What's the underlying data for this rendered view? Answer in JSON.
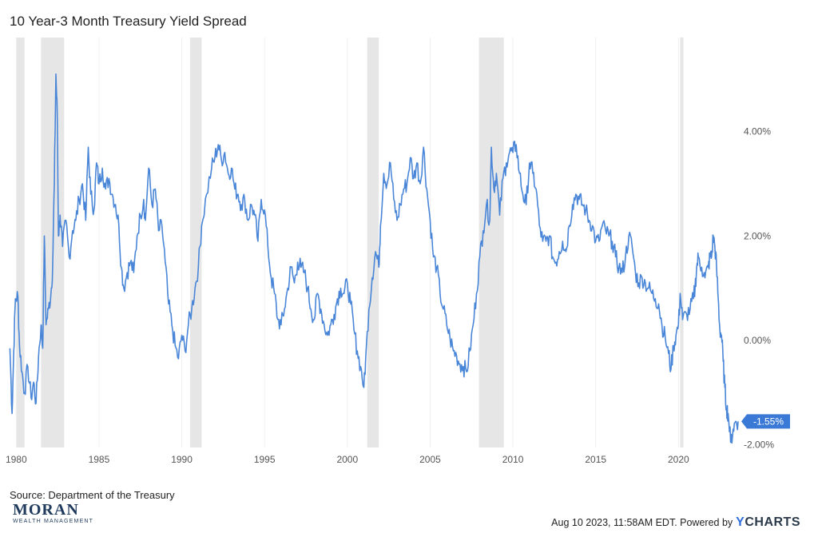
{
  "chart_data": {
    "type": "line",
    "title": "10 Year-3 Month Treasury Yield Spread",
    "xlabel": "",
    "ylabel": "",
    "x_range": [
      1979.6,
      2023.65
    ],
    "y_range": [
      -2.05,
      5.8
    ],
    "x_ticks": [
      {
        "value": 1980,
        "label": "1980"
      },
      {
        "value": 1985,
        "label": "1985"
      },
      {
        "value": 1990,
        "label": "1990"
      },
      {
        "value": 1995,
        "label": "1995"
      },
      {
        "value": 2000,
        "label": "2000"
      },
      {
        "value": 2005,
        "label": "2005"
      },
      {
        "value": 2010,
        "label": "2010"
      },
      {
        "value": 2015,
        "label": "2015"
      },
      {
        "value": 2020,
        "label": "2020"
      }
    ],
    "y_ticks": [
      {
        "value": 4,
        "label": "4.00%"
      },
      {
        "value": 2,
        "label": "2.00%"
      },
      {
        "value": 0,
        "label": "0.00%"
      },
      {
        "value": -2,
        "label": "-2.00%"
      }
    ],
    "recessions": [
      [
        1980.0,
        1980.5
      ],
      [
        1981.5,
        1982.9
      ],
      [
        1990.5,
        1991.2
      ],
      [
        2001.2,
        2001.9
      ],
      [
        2007.95,
        2009.45
      ],
      [
        2020.1,
        2020.3
      ]
    ],
    "series": [
      {
        "color": "#4a86d8",
        "points": [
          [
            1979.62,
            -0.15
          ],
          [
            1979.75,
            -1.4
          ],
          [
            1979.85,
            -0.2
          ],
          [
            1979.95,
            0.8
          ],
          [
            1980.1,
            0.85
          ],
          [
            1980.2,
            -0.1
          ],
          [
            1980.35,
            -0.6
          ],
          [
            1980.5,
            -1.0
          ],
          [
            1980.7,
            -0.5
          ],
          [
            1980.9,
            -1.1
          ],
          [
            1981.05,
            -0.8
          ],
          [
            1981.2,
            -1.2
          ],
          [
            1981.35,
            -0.3
          ],
          [
            1981.5,
            0.3
          ],
          [
            1981.6,
            -0.15
          ],
          [
            1981.7,
            2.0
          ],
          [
            1981.8,
            0.3
          ],
          [
            1981.95,
            0.6
          ],
          [
            1982.1,
            0.9
          ],
          [
            1982.2,
            1.4
          ],
          [
            1982.3,
            3.0
          ],
          [
            1982.4,
            5.1
          ],
          [
            1982.48,
            4.3
          ],
          [
            1982.55,
            2.0
          ],
          [
            1982.65,
            2.4
          ],
          [
            1982.8,
            1.8
          ],
          [
            1983.0,
            2.3
          ],
          [
            1983.2,
            1.6
          ],
          [
            1983.4,
            2.1
          ],
          [
            1983.6,
            2.3
          ],
          [
            1983.8,
            2.7
          ],
          [
            1984.0,
            3.0
          ],
          [
            1984.2,
            2.3
          ],
          [
            1984.35,
            3.7
          ],
          [
            1984.5,
            2.8
          ],
          [
            1984.7,
            2.5
          ],
          [
            1984.85,
            3.4
          ],
          [
            1985.0,
            3.0
          ],
          [
            1985.2,
            3.3
          ],
          [
            1985.4,
            2.9
          ],
          [
            1985.6,
            3.1
          ],
          [
            1985.8,
            2.8
          ],
          [
            1986.0,
            2.6
          ],
          [
            1986.2,
            2.2
          ],
          [
            1986.35,
            1.4
          ],
          [
            1986.5,
            1.0
          ],
          [
            1986.7,
            1.3
          ],
          [
            1986.9,
            1.5
          ],
          [
            1987.1,
            1.3
          ],
          [
            1987.3,
            2.0
          ],
          [
            1987.5,
            2.4
          ],
          [
            1987.7,
            2.7
          ],
          [
            1987.8,
            2.3
          ],
          [
            1988.0,
            3.3
          ],
          [
            1988.2,
            2.6
          ],
          [
            1988.4,
            2.9
          ],
          [
            1988.6,
            2.1
          ],
          [
            1988.8,
            2.2
          ],
          [
            1989.0,
            1.5
          ],
          [
            1989.2,
            0.7
          ],
          [
            1989.4,
            0.3
          ],
          [
            1989.6,
            -0.1
          ],
          [
            1989.8,
            -0.35
          ],
          [
            1990.0,
            0.1
          ],
          [
            1990.2,
            -0.2
          ],
          [
            1990.4,
            0.3
          ],
          [
            1990.6,
            0.6
          ],
          [
            1990.8,
            1.0
          ],
          [
            1991.0,
            1.4
          ],
          [
            1991.2,
            2.2
          ],
          [
            1991.5,
            2.8
          ],
          [
            1991.8,
            3.3
          ],
          [
            1992.0,
            3.5
          ],
          [
            1992.2,
            3.75
          ],
          [
            1992.4,
            3.45
          ],
          [
            1992.6,
            3.6
          ],
          [
            1992.8,
            3.2
          ],
          [
            1993.0,
            3.3
          ],
          [
            1993.2,
            2.9
          ],
          [
            1993.4,
            2.8
          ],
          [
            1993.6,
            2.6
          ],
          [
            1993.8,
            2.7
          ],
          [
            1994.0,
            2.3
          ],
          [
            1994.2,
            2.6
          ],
          [
            1994.4,
            2.4
          ],
          [
            1994.6,
            1.9
          ],
          [
            1994.8,
            2.7
          ],
          [
            1995.0,
            2.5
          ],
          [
            1995.2,
            1.8
          ],
          [
            1995.4,
            1.2
          ],
          [
            1995.6,
            0.9
          ],
          [
            1995.8,
            0.4
          ],
          [
            1996.0,
            0.3
          ],
          [
            1996.2,
            0.6
          ],
          [
            1996.4,
            1.0
          ],
          [
            1996.6,
            1.4
          ],
          [
            1996.8,
            1.1
          ],
          [
            1997.0,
            1.5
          ],
          [
            1997.2,
            1.4
          ],
          [
            1997.4,
            1.3
          ],
          [
            1997.6,
            1.0
          ],
          [
            1997.8,
            0.6
          ],
          [
            1998.0,
            0.4
          ],
          [
            1998.2,
            0.9
          ],
          [
            1998.4,
            0.6
          ],
          [
            1998.6,
            0.3
          ],
          [
            1998.8,
            0.1
          ],
          [
            1999.0,
            0.3
          ],
          [
            1999.2,
            0.5
          ],
          [
            1999.4,
            0.8
          ],
          [
            1999.6,
            1.0
          ],
          [
            1999.8,
            0.9
          ],
          [
            2000.0,
            1.1
          ],
          [
            2000.2,
            0.7
          ],
          [
            2000.4,
            0.2
          ],
          [
            2000.6,
            -0.2
          ],
          [
            2000.8,
            -0.5
          ],
          [
            2001.0,
            -0.9
          ],
          [
            2001.1,
            -0.4
          ],
          [
            2001.3,
            0.6
          ],
          [
            2001.5,
            1.2
          ],
          [
            2001.7,
            1.7
          ],
          [
            2001.9,
            1.4
          ],
          [
            2002.0,
            2.2
          ],
          [
            2002.2,
            3.2
          ],
          [
            2002.4,
            3.0
          ],
          [
            2002.6,
            3.4
          ],
          [
            2002.8,
            2.7
          ],
          [
            2003.0,
            2.3
          ],
          [
            2003.2,
            2.6
          ],
          [
            2003.4,
            2.9
          ],
          [
            2003.6,
            3.0
          ],
          [
            2003.8,
            3.5
          ],
          [
            2004.0,
            3.1
          ],
          [
            2004.2,
            3.4
          ],
          [
            2004.4,
            3.0
          ],
          [
            2004.6,
            3.7
          ],
          [
            2004.8,
            2.9
          ],
          [
            2005.0,
            2.3
          ],
          [
            2005.2,
            1.6
          ],
          [
            2005.4,
            1.4
          ],
          [
            2005.6,
            0.9
          ],
          [
            2005.8,
            0.6
          ],
          [
            2006.0,
            0.3
          ],
          [
            2006.2,
            0.05
          ],
          [
            2006.4,
            -0.2
          ],
          [
            2006.6,
            -0.3
          ],
          [
            2006.8,
            -0.45
          ],
          [
            2007.0,
            -0.5
          ],
          [
            2007.2,
            -0.6
          ],
          [
            2007.4,
            -0.2
          ],
          [
            2007.6,
            0.3
          ],
          [
            2007.8,
            0.9
          ],
          [
            2008.0,
            1.6
          ],
          [
            2008.2,
            2.1
          ],
          [
            2008.4,
            2.6
          ],
          [
            2008.6,
            2.3
          ],
          [
            2008.7,
            3.7
          ],
          [
            2008.85,
            2.9
          ],
          [
            2009.0,
            3.2
          ],
          [
            2009.2,
            2.4
          ],
          [
            2009.4,
            3.1
          ],
          [
            2009.6,
            3.4
          ],
          [
            2009.8,
            3.6
          ],
          [
            2010.0,
            3.6
          ],
          [
            2010.2,
            3.75
          ],
          [
            2010.4,
            3.2
          ],
          [
            2010.6,
            2.8
          ],
          [
            2010.8,
            2.6
          ],
          [
            2011.0,
            3.4
          ],
          [
            2011.2,
            3.2
          ],
          [
            2011.4,
            2.9
          ],
          [
            2011.6,
            2.2
          ],
          [
            2011.8,
            1.9
          ],
          [
            2012.0,
            1.9
          ],
          [
            2012.2,
            2.0
          ],
          [
            2012.4,
            1.6
          ],
          [
            2012.6,
            1.5
          ],
          [
            2012.8,
            1.7
          ],
          [
            2013.0,
            1.9
          ],
          [
            2013.2,
            1.7
          ],
          [
            2013.4,
            2.2
          ],
          [
            2013.6,
            2.6
          ],
          [
            2013.8,
            2.8
          ],
          [
            2014.0,
            2.7
          ],
          [
            2014.2,
            2.6
          ],
          [
            2014.4,
            2.5
          ],
          [
            2014.6,
            2.3
          ],
          [
            2014.8,
            2.2
          ],
          [
            2015.0,
            1.9
          ],
          [
            2015.2,
            1.9
          ],
          [
            2015.4,
            2.2
          ],
          [
            2015.6,
            2.1
          ],
          [
            2015.8,
            2.0
          ],
          [
            2016.0,
            1.9
          ],
          [
            2016.2,
            1.6
          ],
          [
            2016.4,
            1.4
          ],
          [
            2016.6,
            1.3
          ],
          [
            2016.8,
            1.6
          ],
          [
            2017.0,
            2.0
          ],
          [
            2017.2,
            1.8
          ],
          [
            2017.4,
            1.3
          ],
          [
            2017.6,
            1.1
          ],
          [
            2017.8,
            1.2
          ],
          [
            2018.0,
            1.1
          ],
          [
            2018.2,
            1.0
          ],
          [
            2018.4,
            0.9
          ],
          [
            2018.6,
            0.8
          ],
          [
            2018.8,
            0.7
          ],
          [
            2019.0,
            0.3
          ],
          [
            2019.2,
            0.05
          ],
          [
            2019.4,
            -0.25
          ],
          [
            2019.55,
            -0.55
          ],
          [
            2019.7,
            -0.1
          ],
          [
            2019.85,
            0.1
          ],
          [
            2020.0,
            0.3
          ],
          [
            2020.1,
            0.9
          ],
          [
            2020.25,
            0.4
          ],
          [
            2020.5,
            0.5
          ],
          [
            2020.7,
            0.6
          ],
          [
            2020.9,
            0.8
          ],
          [
            2021.0,
            1.0
          ],
          [
            2021.1,
            1.4
          ],
          [
            2021.2,
            1.6
          ],
          [
            2021.4,
            1.4
          ],
          [
            2021.6,
            1.2
          ],
          [
            2021.8,
            1.4
          ],
          [
            2021.9,
            1.6
          ],
          [
            2022.0,
            1.6
          ],
          [
            2022.1,
            2.0
          ],
          [
            2022.2,
            1.8
          ],
          [
            2022.3,
            1.4
          ],
          [
            2022.4,
            0.8
          ],
          [
            2022.5,
            0.2
          ],
          [
            2022.6,
            0.1
          ],
          [
            2022.7,
            -0.4
          ],
          [
            2022.8,
            -0.9
          ],
          [
            2022.9,
            -1.3
          ],
          [
            2023.0,
            -1.4
          ],
          [
            2023.15,
            -1.95
          ],
          [
            2023.3,
            -1.7
          ],
          [
            2023.45,
            -1.55
          ],
          [
            2023.6,
            -1.55
          ]
        ]
      }
    ],
    "last_value": {
      "x": 2023.6,
      "y": -1.55,
      "label": "-1.55%"
    },
    "grid": true,
    "legend": "none"
  },
  "source": "Source: Department of the Treasury",
  "logo": {
    "main": "MORAN",
    "sub": "WEALTH MANAGEMENT"
  },
  "footer": {
    "timestamp": "Aug 10 2023, 11:58AM EDT. Powered by",
    "brand_y": "Y",
    "brand_rest": "CHARTS"
  }
}
